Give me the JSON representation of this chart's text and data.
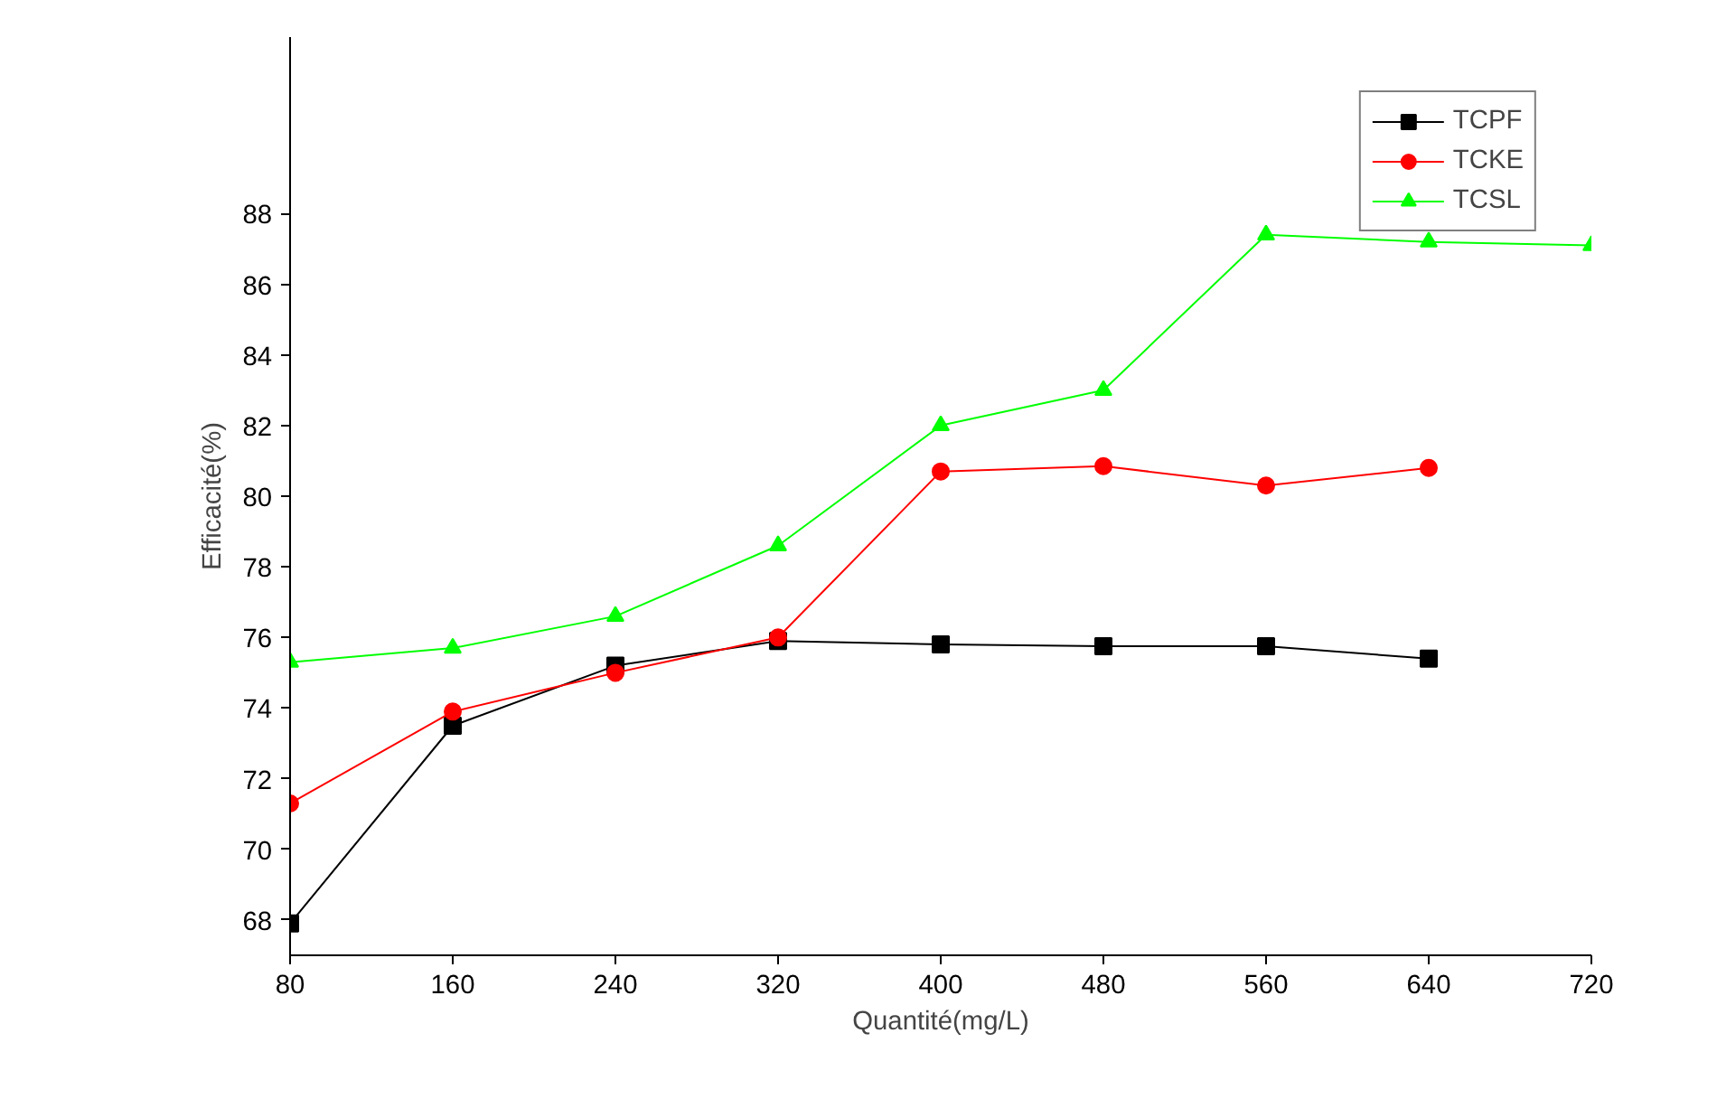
{
  "chart_data": {
    "type": "line",
    "xlabel": "Quantité(mg/L)",
    "ylabel": "Efficacité(%)",
    "x": [
      80,
      160,
      240,
      320,
      400,
      480,
      560,
      640,
      720
    ],
    "series": [
      {
        "name": "TCPF",
        "color": "#000000",
        "marker": "square",
        "values": [
          67.9,
          73.5,
          75.2,
          75.9,
          75.8,
          75.75,
          75.75,
          75.4,
          null
        ]
      },
      {
        "name": "TCKE",
        "color": "#ff0000",
        "marker": "circle",
        "values": [
          71.3,
          73.9,
          75.0,
          76.0,
          80.7,
          80.85,
          80.3,
          80.8,
          null
        ]
      },
      {
        "name": "TCSL",
        "color": "#00ff00",
        "marker": "triangle",
        "values": [
          75.3,
          75.7,
          76.6,
          78.6,
          82.0,
          83.0,
          87.4,
          87.2,
          87.1
        ]
      }
    ],
    "xlim": [
      80,
      720
    ],
    "xticks": [
      80,
      160,
      240,
      320,
      400,
      480,
      560,
      640,
      720
    ],
    "ylim": [
      67,
      93
    ],
    "yticks": [
      68,
      70,
      72,
      74,
      76,
      78,
      80,
      82,
      84,
      86,
      88
    ],
    "grid": false,
    "legend": "top right",
    "line_style": "solid"
  }
}
